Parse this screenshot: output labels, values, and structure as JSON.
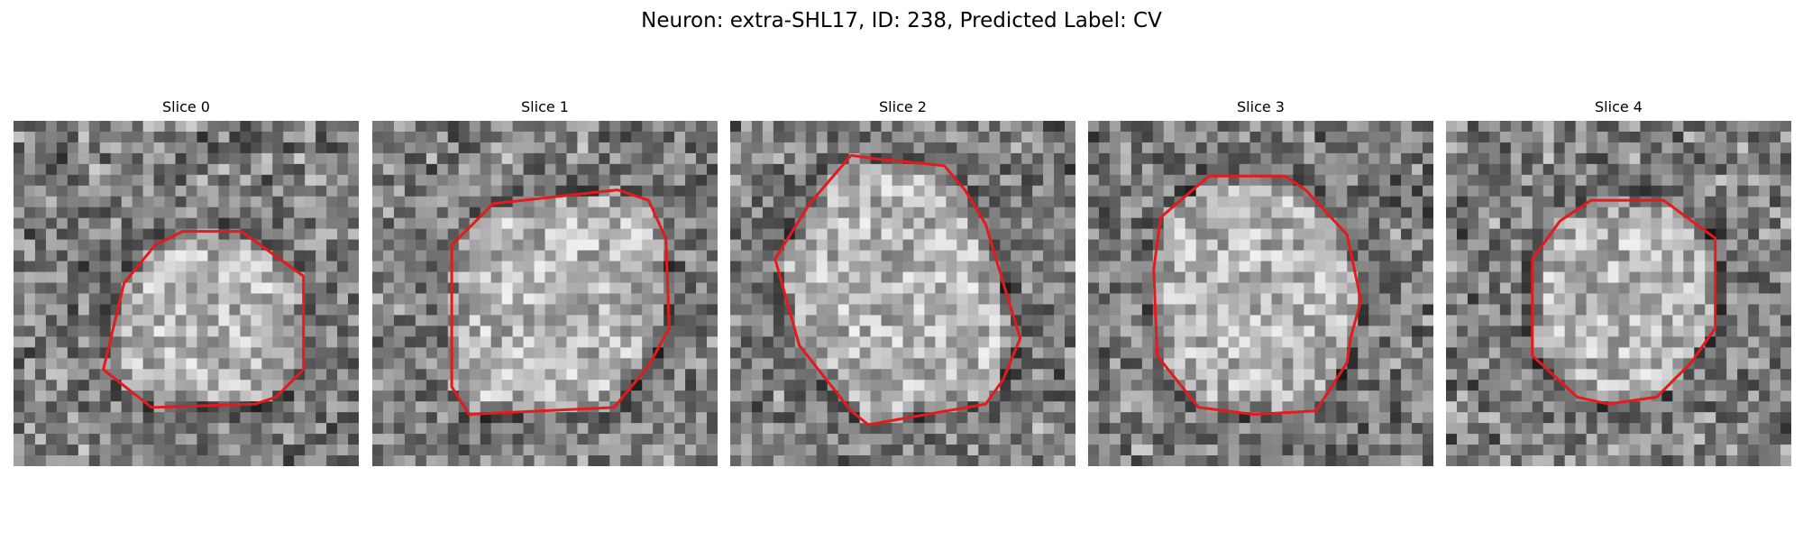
{
  "figure": {
    "title": "Neuron: extra-SHL17, ID: 238, Predicted Label: CV"
  },
  "colors": {
    "contour": "#e41a1c",
    "background": "#ffffff"
  },
  "panels": [
    {
      "title": "Slice 0",
      "contour": [
        [
          0.49,
          0.32
        ],
        [
          0.66,
          0.32
        ],
        [
          0.84,
          0.45
        ],
        [
          0.84,
          0.72
        ],
        [
          0.76,
          0.8
        ],
        [
          0.7,
          0.82
        ],
        [
          0.4,
          0.83
        ],
        [
          0.26,
          0.72
        ],
        [
          0.32,
          0.47
        ],
        [
          0.41,
          0.36
        ]
      ]
    },
    {
      "title": "Slice 1",
      "contour": [
        [
          0.35,
          0.24
        ],
        [
          0.71,
          0.2
        ],
        [
          0.8,
          0.23
        ],
        [
          0.85,
          0.34
        ],
        [
          0.86,
          0.6
        ],
        [
          0.8,
          0.71
        ],
        [
          0.7,
          0.83
        ],
        [
          0.28,
          0.85
        ],
        [
          0.23,
          0.77
        ],
        [
          0.23,
          0.36
        ]
      ]
    },
    {
      "title": "Slice 2",
      "contour": [
        [
          0.35,
          0.1
        ],
        [
          0.42,
          0.11
        ],
        [
          0.62,
          0.13
        ],
        [
          0.68,
          0.2
        ],
        [
          0.74,
          0.3
        ],
        [
          0.8,
          0.5
        ],
        [
          0.84,
          0.63
        ],
        [
          0.79,
          0.75
        ],
        [
          0.74,
          0.82
        ],
        [
          0.4,
          0.88
        ],
        [
          0.35,
          0.84
        ],
        [
          0.2,
          0.65
        ],
        [
          0.13,
          0.4
        ],
        [
          0.23,
          0.24
        ]
      ]
    },
    {
      "title": "Slice 3",
      "contour": [
        [
          0.35,
          0.16
        ],
        [
          0.57,
          0.16
        ],
        [
          0.63,
          0.2
        ],
        [
          0.75,
          0.33
        ],
        [
          0.79,
          0.52
        ],
        [
          0.76,
          0.63
        ],
        [
          0.75,
          0.7
        ],
        [
          0.66,
          0.84
        ],
        [
          0.48,
          0.85
        ],
        [
          0.32,
          0.83
        ],
        [
          0.2,
          0.68
        ],
        [
          0.19,
          0.43
        ],
        [
          0.21,
          0.28
        ]
      ]
    },
    {
      "title": "Slice 4",
      "contour": [
        [
          0.42,
          0.23
        ],
        [
          0.63,
          0.23
        ],
        [
          0.78,
          0.34
        ],
        [
          0.78,
          0.6
        ],
        [
          0.71,
          0.7
        ],
        [
          0.61,
          0.8
        ],
        [
          0.47,
          0.82
        ],
        [
          0.38,
          0.8
        ],
        [
          0.25,
          0.68
        ],
        [
          0.25,
          0.4
        ],
        [
          0.33,
          0.29
        ]
      ]
    }
  ]
}
